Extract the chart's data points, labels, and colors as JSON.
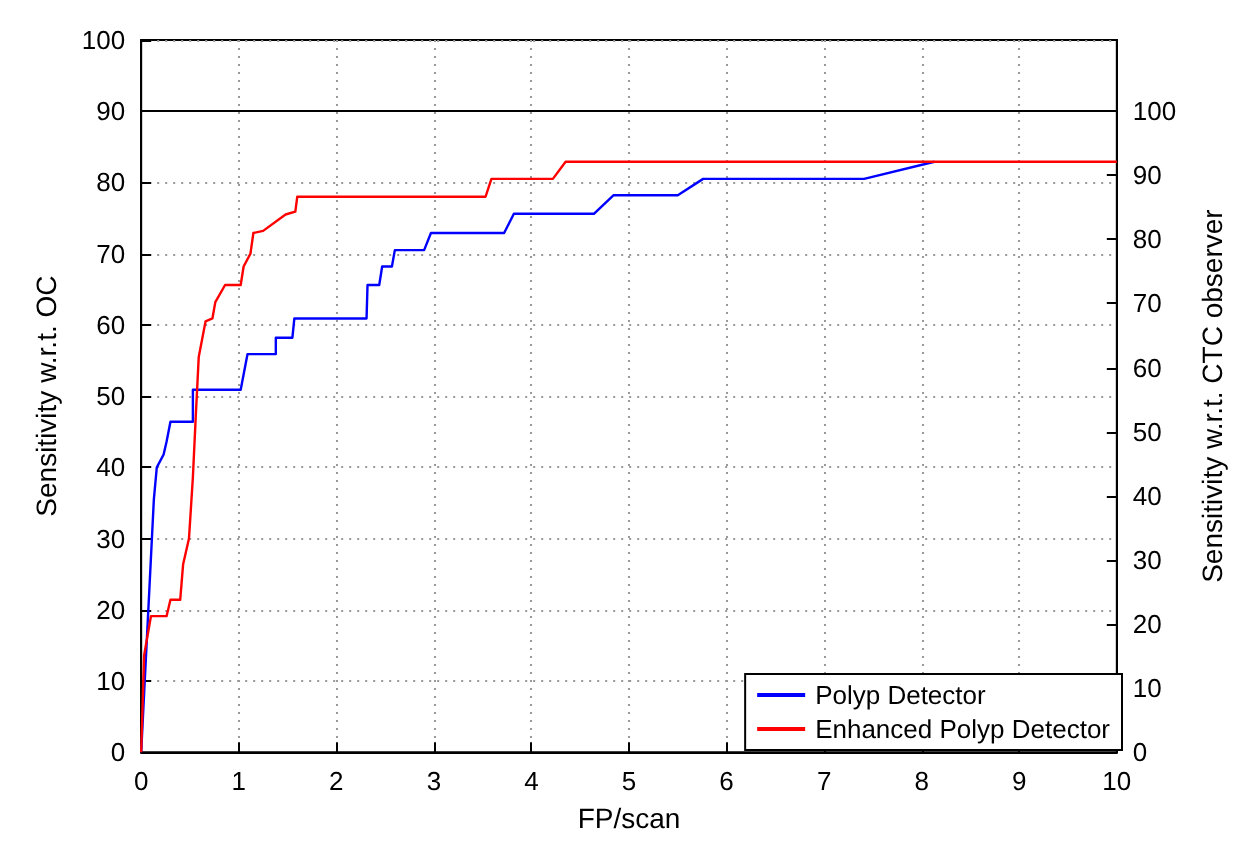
{
  "chart_data": {
    "type": "line",
    "xlabel": "FP/scan",
    "ylabel": "Sensitivity w.r.t. OC",
    "y2label": "Sensitivity w.r.t. CTC observer",
    "xlim": [
      0,
      10
    ],
    "xticks": [
      0,
      1,
      2,
      3,
      4,
      5,
      6,
      7,
      8,
      9,
      10
    ],
    "ylim": [
      0,
      100
    ],
    "yticks": [
      0,
      10,
      20,
      30,
      40,
      50,
      60,
      70,
      80,
      90,
      100
    ],
    "y2lim": [
      0,
      111.1
    ],
    "y2ticks": [
      0,
      10,
      20,
      30,
      40,
      50,
      60,
      70,
      80,
      90,
      100
    ],
    "grid": true,
    "legend": "bottom right",
    "marker": "none",
    "line_style": "solid",
    "ref_lines": [
      {
        "axis": "y",
        "value": 90,
        "color": "#000000"
      }
    ],
    "series": [
      {
        "name": "Polyp Detector",
        "color": "#0000ff",
        "x": [
          0,
          0.07,
          0.13,
          0.16,
          0.23,
          0.26,
          0.3,
          0.53,
          0.53,
          1.02,
          1.09,
          1.38,
          1.38,
          1.55,
          1.57,
          2.31,
          2.32,
          2.44,
          2.47,
          2.57,
          2.6,
          2.9,
          2.97,
          3.72,
          3.82,
          4.64,
          4.84,
          5.5,
          5.76,
          7.41,
          8.13
        ],
        "values": [
          0,
          19.1,
          35.5,
          40,
          41.8,
          43.6,
          46.4,
          46.4,
          50.9,
          50.9,
          55.9,
          55.9,
          58.2,
          58.2,
          60.9,
          60.9,
          65.6,
          65.6,
          68.2,
          68.2,
          70.5,
          70.5,
          72.9,
          72.9,
          75.6,
          75.6,
          78.2,
          78.2,
          80.5,
          80.5,
          82.9
        ]
      },
      {
        "name": "Enhanced Polyp Detector",
        "color": "#ff0000",
        "x": [
          0,
          0.03,
          0.1,
          0.26,
          0.3,
          0.4,
          0.43,
          0.49,
          0.53,
          0.56,
          0.59,
          0.66,
          0.73,
          0.76,
          0.86,
          1.02,
          1.05,
          1.12,
          1.15,
          1.25,
          1.48,
          1.58,
          1.6,
          3.53,
          3.59,
          4.22,
          4.35,
          10
        ],
        "values": [
          0,
          13.6,
          19.1,
          19.1,
          21.4,
          21.4,
          26.4,
          30,
          38.6,
          47.3,
          55.5,
          60.5,
          60.9,
          63.2,
          65.6,
          65.6,
          68.2,
          70,
          72.9,
          73.2,
          75.5,
          75.9,
          78,
          78,
          80.5,
          80.5,
          82.9,
          82.9
        ]
      }
    ]
  }
}
